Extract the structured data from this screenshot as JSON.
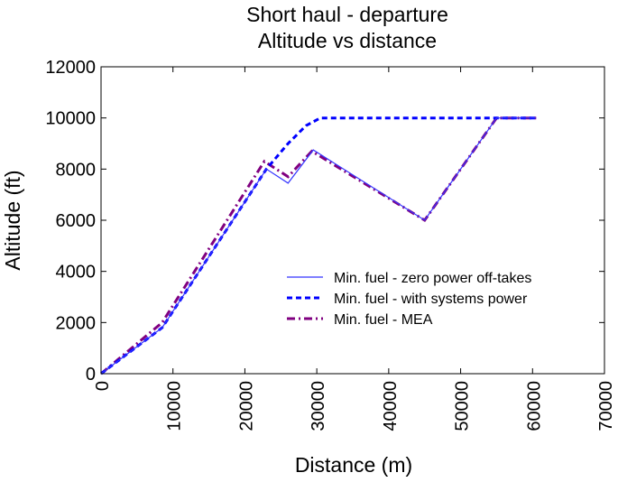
{
  "chart_data": {
    "type": "line",
    "title": "Short haul - departure",
    "subtitle": "Altitude vs distance",
    "xlabel": "Distance (m)",
    "ylabel": "Altitude (ft)",
    "xlim": [
      0,
      70000
    ],
    "ylim": [
      0,
      12000
    ],
    "x_ticks": [
      0,
      10000,
      20000,
      30000,
      40000,
      50000,
      60000,
      70000
    ],
    "y_ticks": [
      0,
      2000,
      4000,
      6000,
      8000,
      10000,
      12000
    ],
    "x_tick_labels": [
      "0",
      "10000",
      "20000",
      "30000",
      "40000",
      "50000",
      "60000",
      "70000"
    ],
    "y_tick_labels": [
      "0",
      "2000",
      "4000",
      "6000",
      "8000",
      "10000",
      "12000"
    ],
    "grid": false,
    "legend_position": "lower-right",
    "series": [
      {
        "name": "Min. fuel - zero power off-takes",
        "color": "#3333ff",
        "style": "solid",
        "x": [
          0,
          8500,
          23000,
          26000,
          29500,
          45000,
          55000,
          60500
        ],
        "y": [
          0,
          1800,
          8000,
          7450,
          8750,
          6000,
          10000,
          10000
        ]
      },
      {
        "name": "Min. fuel - with systems power",
        "color": "#0000ff",
        "style": "dashed",
        "x": [
          0,
          8500,
          23000,
          26000,
          28500,
          30500,
          55000,
          60500
        ],
        "y": [
          0,
          1800,
          8000,
          9000,
          9700,
          10000,
          10000,
          10000
        ]
      },
      {
        "name": "Min. fuel - MEA",
        "color": "#800080",
        "style": "dashdot",
        "x": [
          0,
          8500,
          22700,
          26000,
          29300,
          45000,
          55000,
          60500
        ],
        "y": [
          0,
          2000,
          8300,
          7700,
          8700,
          6000,
          10000,
          10000
        ]
      }
    ]
  }
}
